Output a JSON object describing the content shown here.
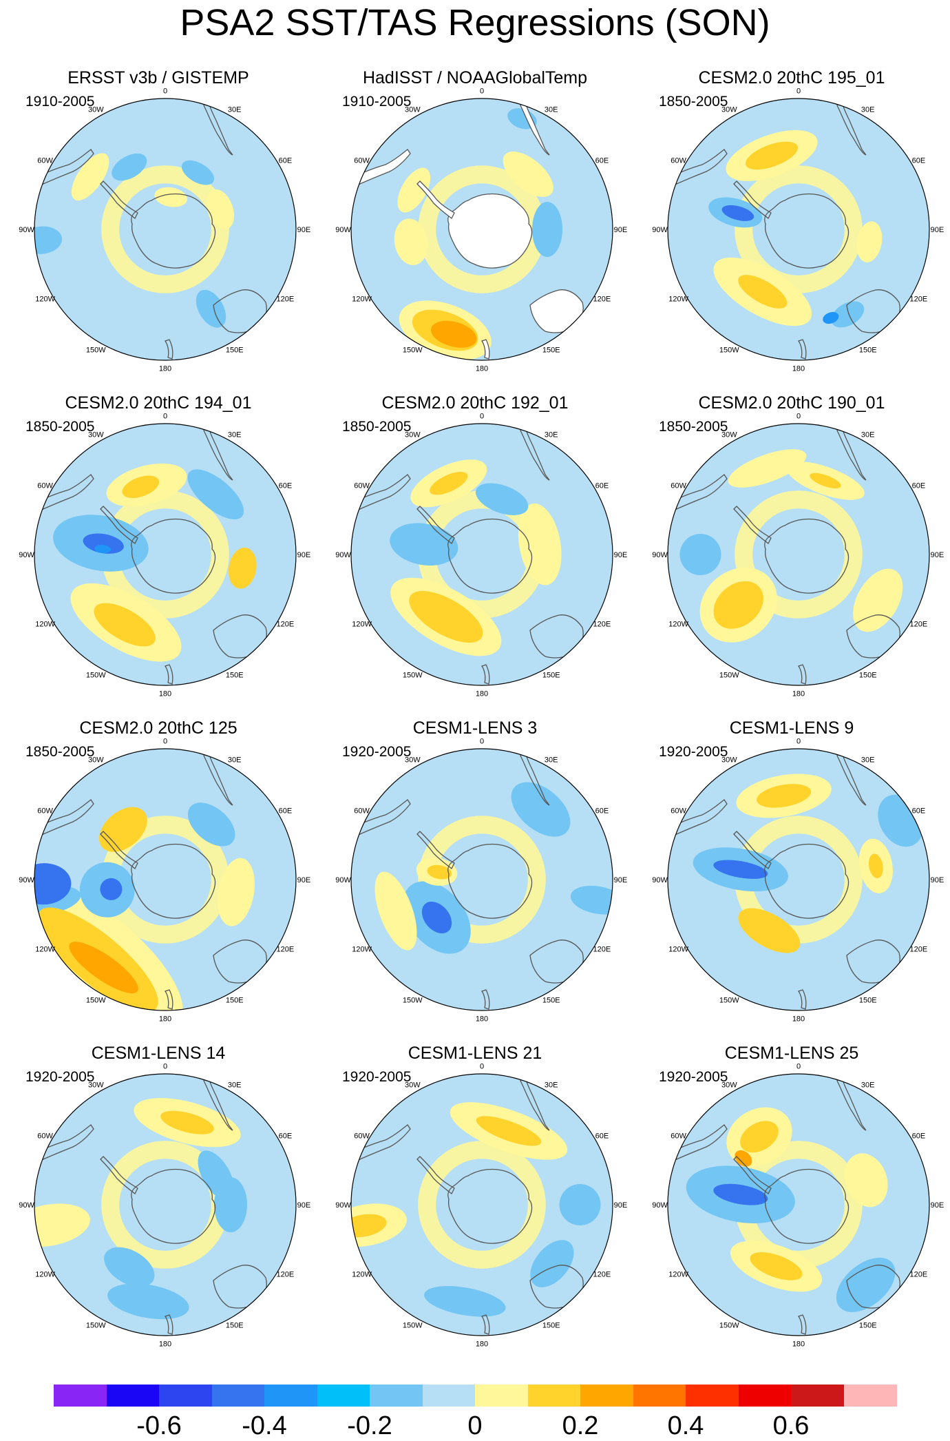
{
  "title": "PSA2 SST/TAS Regressions (SON)",
  "longitude_labels": [
    "0",
    "30E",
    "60E",
    "90E",
    "120E",
    "150E",
    "180",
    "150W",
    "120W",
    "90W",
    "60W",
    "30W"
  ],
  "panels": [
    {
      "title": "ERSST v3b / GISTEMP",
      "period": "1910-2005",
      "land_masked": false,
      "antarctica_blank": false,
      "blobs": [
        {
          "lon": -30,
          "r": 0.55,
          "w": 28,
          "h": 16,
          "lvl": -1
        },
        {
          "lon": 30,
          "r": 0.5,
          "w": 26,
          "h": 14,
          "lvl": -1
        },
        {
          "lon": 70,
          "r": 0.45,
          "w": 30,
          "h": 18,
          "lvl": 1
        },
        {
          "lon": -55,
          "r": 0.7,
          "w": 40,
          "h": 18,
          "lvl": 1
        },
        {
          "lon": 150,
          "r": 0.7,
          "w": 18,
          "h": 30,
          "lvl": -1
        },
        {
          "lon": -95,
          "r": 0.95,
          "w": 20,
          "h": 30,
          "lvl": -1
        },
        {
          "lon": 10,
          "r": 0.25,
          "w": 24,
          "h": 14,
          "lvl": 1
        }
      ]
    },
    {
      "title": "HadISST / NOAAGlobalTemp",
      "period": "1910-2005",
      "land_masked": true,
      "antarctica_blank": true,
      "blobs": [
        {
          "lon": -160,
          "r": 0.82,
          "w": 70,
          "h": 38,
          "lvl": 1
        },
        {
          "lon": -160,
          "r": 0.82,
          "w": 50,
          "h": 26,
          "lvl": 2
        },
        {
          "lon": -165,
          "r": 0.83,
          "w": 34,
          "h": 18,
          "lvl": 3
        },
        {
          "lon": -60,
          "r": 0.6,
          "w": 36,
          "h": 18,
          "lvl": 1
        },
        {
          "lon": 40,
          "r": 0.55,
          "w": 44,
          "h": 22,
          "lvl": 1
        },
        {
          "lon": -100,
          "r": 0.55,
          "w": 34,
          "h": 24,
          "lvl": 1
        },
        {
          "lon": 90,
          "r": 0.5,
          "w": 40,
          "h": 22,
          "lvl": -1
        },
        {
          "lon": 20,
          "r": 0.9,
          "w": 22,
          "h": 14,
          "lvl": -1
        }
      ]
    },
    {
      "title": "CESM2.0 20thC 195_01",
      "period": "1850-2005",
      "land_masked": false,
      "antarctica_blank": false,
      "blobs": [
        {
          "lon": -20,
          "r": 0.6,
          "w": 70,
          "h": 30,
          "lvl": 1
        },
        {
          "lon": -20,
          "r": 0.6,
          "w": 40,
          "h": 16,
          "lvl": 2
        },
        {
          "lon": -150,
          "r": 0.55,
          "w": 80,
          "h": 34,
          "lvl": 1
        },
        {
          "lon": -150,
          "r": 0.55,
          "w": 40,
          "h": 16,
          "lvl": 2
        },
        {
          "lon": -75,
          "r": 0.5,
          "w": 20,
          "h": 40,
          "lvl": -1
        },
        {
          "lon": -75,
          "r": 0.48,
          "w": 10,
          "h": 24,
          "lvl": -2
        },
        {
          "lon": 150,
          "r": 0.75,
          "w": 26,
          "h": 16,
          "lvl": -1
        },
        {
          "lon": 160,
          "r": 0.72,
          "w": 12,
          "h": 8,
          "lvl": -3
        },
        {
          "lon": 100,
          "r": 0.55,
          "w": 30,
          "h": 18,
          "lvl": 1
        }
      ]
    },
    {
      "title": "CESM2.0 20thC 194_01",
      "period": "1850-2005",
      "land_masked": false,
      "antarctica_blank": false,
      "blobs": [
        {
          "lon": -15,
          "r": 0.55,
          "w": 60,
          "h": 28,
          "lvl": 1
        },
        {
          "lon": -20,
          "r": 0.55,
          "w": 28,
          "h": 14,
          "lvl": 2
        },
        {
          "lon": -150,
          "r": 0.6,
          "w": 90,
          "h": 40,
          "lvl": 1
        },
        {
          "lon": -150,
          "r": 0.62,
          "w": 50,
          "h": 22,
          "lvl": 2
        },
        {
          "lon": -80,
          "r": 0.5,
          "w": 40,
          "h": 70,
          "lvl": -1
        },
        {
          "lon": -80,
          "r": 0.48,
          "w": 14,
          "h": 30,
          "lvl": -2
        },
        {
          "lon": -85,
          "r": 0.48,
          "w": 6,
          "h": 12,
          "lvl": -3
        },
        {
          "lon": 100,
          "r": 0.6,
          "w": 30,
          "h": 20,
          "lvl": 2
        },
        {
          "lon": 40,
          "r": 0.6,
          "w": 50,
          "h": 22,
          "lvl": -1
        }
      ]
    },
    {
      "title": "CESM2.0 20thC 192_01",
      "period": "1850-2005",
      "land_masked": false,
      "antarctica_blank": false,
      "blobs": [
        {
          "lon": -25,
          "r": 0.6,
          "w": 60,
          "h": 26,
          "lvl": 1
        },
        {
          "lon": -25,
          "r": 0.6,
          "w": 30,
          "h": 12,
          "lvl": 2
        },
        {
          "lon": -150,
          "r": 0.55,
          "w": 60,
          "h": 26,
          "lvl": 2
        },
        {
          "lon": -150,
          "r": 0.55,
          "w": 90,
          "h": 40,
          "lvl": 1
        },
        {
          "lon": -80,
          "r": 0.45,
          "w": 30,
          "h": 50,
          "lvl": -1
        },
        {
          "lon": 80,
          "r": 0.45,
          "w": 60,
          "h": 30,
          "lvl": 1
        },
        {
          "lon": 20,
          "r": 0.45,
          "w": 40,
          "h": 20,
          "lvl": -1
        }
      ]
    },
    {
      "title": "CESM2.0 20thC 190_01",
      "period": "1850-2005",
      "land_masked": false,
      "antarctica_blank": false,
      "blobs": [
        {
          "lon": -130,
          "r": 0.6,
          "w": 30,
          "h": 40,
          "lvl": 2
        },
        {
          "lon": -130,
          "r": 0.6,
          "w": 50,
          "h": 60,
          "lvl": 1
        },
        {
          "lon": -90,
          "r": 0.75,
          "w": 30,
          "h": 30,
          "lvl": -1
        },
        {
          "lon": 20,
          "r": 0.6,
          "w": 60,
          "h": 20,
          "lvl": 1
        },
        {
          "lon": 20,
          "r": 0.6,
          "w": 24,
          "h": 8,
          "lvl": 2
        },
        {
          "lon": 120,
          "r": 0.7,
          "w": 50,
          "h": 30,
          "lvl": 1
        },
        {
          "lon": -20,
          "r": 0.7,
          "w": 60,
          "h": 20,
          "lvl": 1
        }
      ]
    },
    {
      "title": "CESM2.0 20thC 125",
      "period": "1850-2005",
      "land_masked": false,
      "antarctica_blank": false,
      "blobs": [
        {
          "lon": -140,
          "r": 0.78,
          "w": 150,
          "h": 60,
          "lvl": 1
        },
        {
          "lon": -140,
          "r": 0.8,
          "w": 110,
          "h": 36,
          "lvl": 2
        },
        {
          "lon": -145,
          "r": 0.82,
          "w": 60,
          "h": 18,
          "lvl": 3
        },
        {
          "lon": -92,
          "r": 0.93,
          "w": 30,
          "h": 40,
          "lvl": -2
        },
        {
          "lon": -100,
          "r": 0.92,
          "w": 20,
          "h": 50,
          "lvl": -1
        },
        {
          "lon": -100,
          "r": 0.45,
          "w": 40,
          "h": 40,
          "lvl": -1
        },
        {
          "lon": -100,
          "r": 0.42,
          "w": 16,
          "h": 16,
          "lvl": -2
        },
        {
          "lon": -40,
          "r": 0.5,
          "w": 40,
          "h": 26,
          "lvl": 2
        },
        {
          "lon": 40,
          "r": 0.55,
          "w": 40,
          "h": 24,
          "lvl": -1
        },
        {
          "lon": 100,
          "r": 0.55,
          "w": 50,
          "h": 26,
          "lvl": 1
        }
      ]
    },
    {
      "title": "CESM1-LENS 3",
      "period": "1920-2005",
      "land_masked": false,
      "antarctica_blank": false,
      "blobs": [
        {
          "lon": -130,
          "r": 0.45,
          "w": 60,
          "h": 40,
          "lvl": -1
        },
        {
          "lon": -130,
          "r": 0.45,
          "w": 26,
          "h": 18,
          "lvl": -2
        },
        {
          "lon": -80,
          "r": 0.35,
          "w": 20,
          "h": 30,
          "lvl": 1
        },
        {
          "lon": -80,
          "r": 0.33,
          "w": 10,
          "h": 18,
          "lvl": 2
        },
        {
          "lon": -110,
          "r": 0.7,
          "w": 60,
          "h": 24,
          "lvl": 1
        },
        {
          "lon": 40,
          "r": 0.7,
          "w": 50,
          "h": 30,
          "lvl": -1
        },
        {
          "lon": 100,
          "r": 0.9,
          "w": 20,
          "h": 40,
          "lvl": -1
        }
      ]
    },
    {
      "title": "CESM1-LENS 9",
      "period": "1920-2005",
      "land_masked": false,
      "antarctica_blank": false,
      "blobs": [
        {
          "lon": -10,
          "r": 0.65,
          "w": 70,
          "h": 30,
          "lvl": 1
        },
        {
          "lon": -10,
          "r": 0.65,
          "w": 40,
          "h": 16,
          "lvl": 2
        },
        {
          "lon": -150,
          "r": 0.45,
          "w": 50,
          "h": 24,
          "lvl": 2
        },
        {
          "lon": -80,
          "r": 0.45,
          "w": 30,
          "h": 70,
          "lvl": -1
        },
        {
          "lon": -80,
          "r": 0.45,
          "w": 12,
          "h": 40,
          "lvl": -2
        },
        {
          "lon": 80,
          "r": 0.6,
          "w": 40,
          "h": 24,
          "lvl": 1
        },
        {
          "lon": 80,
          "r": 0.6,
          "w": 18,
          "h": 10,
          "lvl": 2
        },
        {
          "lon": 60,
          "r": 0.9,
          "w": 40,
          "h": 30,
          "lvl": -1
        }
      ]
    },
    {
      "title": "CESM1-LENS 14",
      "period": "1920-2005",
      "land_masked": false,
      "antarctica_blank": false,
      "blobs": [
        {
          "lon": 15,
          "r": 0.65,
          "w": 80,
          "h": 30,
          "lvl": 1
        },
        {
          "lon": 15,
          "r": 0.65,
          "w": 40,
          "h": 14,
          "lvl": 2
        },
        {
          "lon": -100,
          "r": 0.9,
          "w": 30,
          "h": 60,
          "lvl": 1
        },
        {
          "lon": -150,
          "r": 0.55,
          "w": 40,
          "h": 24,
          "lvl": -1
        },
        {
          "lon": -170,
          "r": 0.75,
          "w": 60,
          "h": 24,
          "lvl": -1
        },
        {
          "lon": 90,
          "r": 0.5,
          "w": 40,
          "h": 24,
          "lvl": -1
        },
        {
          "lon": 60,
          "r": 0.45,
          "w": 40,
          "h": 20,
          "lvl": -1
        }
      ]
    },
    {
      "title": "CESM1-LENS 21",
      "period": "1920-2005",
      "land_masked": false,
      "antarctica_blank": false,
      "blobs": [
        {
          "lon": 20,
          "r": 0.6,
          "w": 90,
          "h": 30,
          "lvl": 1
        },
        {
          "lon": 20,
          "r": 0.6,
          "w": 50,
          "h": 14,
          "lvl": 2
        },
        {
          "lon": -100,
          "r": 0.9,
          "w": 30,
          "h": 60,
          "lvl": 1
        },
        {
          "lon": -100,
          "r": 0.92,
          "w": 16,
          "h": 34,
          "lvl": 2
        },
        {
          "lon": -170,
          "r": 0.75,
          "w": 60,
          "h": 20,
          "lvl": -1
        },
        {
          "lon": 130,
          "r": 0.7,
          "w": 40,
          "h": 24,
          "lvl": -1
        },
        {
          "lon": 90,
          "r": 0.75,
          "w": 30,
          "h": 30,
          "lvl": -1
        }
      ]
    },
    {
      "title": "CESM1-LENS 25",
      "period": "1920-2005",
      "land_masked": false,
      "antarctica_blank": false,
      "blobs": [
        {
          "lon": -30,
          "r": 0.6,
          "w": 50,
          "h": 40,
          "lvl": 1
        },
        {
          "lon": -30,
          "r": 0.6,
          "w": 30,
          "h": 20,
          "lvl": 2
        },
        {
          "lon": -50,
          "r": 0.55,
          "w": 10,
          "h": 14,
          "lvl": 3
        },
        {
          "lon": -80,
          "r": 0.45,
          "w": 40,
          "h": 80,
          "lvl": -1
        },
        {
          "lon": -80,
          "r": 0.45,
          "w": 14,
          "h": 40,
          "lvl": -2
        },
        {
          "lon": -160,
          "r": 0.5,
          "w": 70,
          "h": 30,
          "lvl": 1
        },
        {
          "lon": -160,
          "r": 0.5,
          "w": 40,
          "h": 16,
          "lvl": 2
        },
        {
          "lon": 70,
          "r": 0.55,
          "w": 40,
          "h": 30,
          "lvl": 1
        },
        {
          "lon": 140,
          "r": 0.8,
          "w": 50,
          "h": 30,
          "lvl": -1
        }
      ]
    }
  ],
  "colorbar": {
    "colors": [
      "#8a26f5",
      "#1a05f5",
      "#2c45f0",
      "#3673ee",
      "#1f95f8",
      "#00bff9",
      "#73c6f3",
      "#b6dff5",
      "#fff799",
      "#ffd32c",
      "#ffa600",
      "#ff7500",
      "#ff3000",
      "#ee0000",
      "#cc1818",
      "#ffb6b6"
    ],
    "labels": [
      "-0.6",
      "-0.4",
      "-0.2",
      "0",
      "0.2",
      "0.4",
      "0.6"
    ],
    "label_boundaries": [
      2,
      4,
      6,
      8,
      10,
      12,
      14
    ]
  },
  "level_colors": {
    "-3": "#1f95f8",
    "-2": "#3673ee",
    "-1": "#73c6f3",
    "0": "#b6dff5",
    "1": "#fff799",
    "2": "#ffd32c",
    "3": "#ffa600"
  }
}
